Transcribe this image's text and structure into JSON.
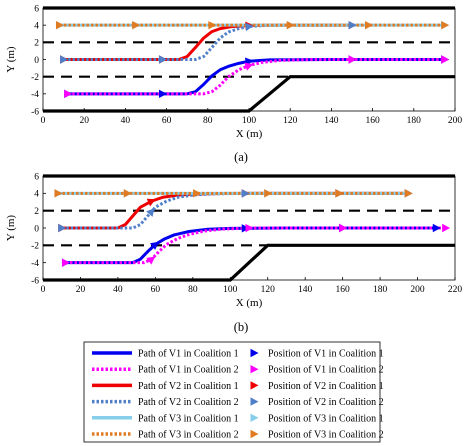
{
  "legend": {
    "items": [
      {
        "label": "Path of V1 in Coalition 1",
        "kind": "line",
        "color": "#0000ee",
        "dash": "solid"
      },
      {
        "label": "Path of V1 in Coalition 2",
        "kind": "line",
        "color": "#ff00ff",
        "dash": "dotted"
      },
      {
        "label": "Path of V2 in Coalition 1",
        "kind": "line",
        "color": "#ee0000",
        "dash": "solid"
      },
      {
        "label": "Path of V2 in Coalition 2",
        "kind": "line",
        "color": "#4f7fc9",
        "dash": "dotted"
      },
      {
        "label": "Path of V3 in Coalition 1",
        "kind": "line",
        "color": "#87ceeb",
        "dash": "solid"
      },
      {
        "label": "Path of V3 in Coalition 2",
        "kind": "line",
        "color": "#e07b22",
        "dash": "dotted"
      },
      {
        "label": "Position of V1 in Coalition 1",
        "kind": "marker",
        "color": "#0000ee"
      },
      {
        "label": "Position of V1 in Coalition 2",
        "kind": "marker",
        "color": "#ff00ff"
      },
      {
        "label": "Position of V2 in Coalition 1",
        "kind": "marker",
        "color": "#ee0000"
      },
      {
        "label": "Position of V2 in Coalition 2",
        "kind": "marker",
        "color": "#4f7fc9"
      },
      {
        "label": "Position of V3 in Coalition 1",
        "kind": "marker",
        "color": "#87ceeb"
      },
      {
        "label": "Position of V3 in Coalition 2",
        "kind": "marker",
        "color": "#e07b22"
      }
    ]
  },
  "chart_data": [
    {
      "type": "line",
      "caption": "(a)",
      "xlabel": "X (m)",
      "ylabel": "Y (m)",
      "xlim": [
        0,
        200
      ],
      "ylim": [
        -6,
        6
      ],
      "xticks": [
        0,
        20,
        40,
        60,
        80,
        100,
        120,
        140,
        160,
        180,
        200
      ],
      "yticks": [
        -6,
        -4,
        -2,
        0,
        2,
        4,
        6
      ],
      "road": {
        "solid_lines": [
          [
            [
              0,
              6
            ],
            [
              200,
              6
            ]
          ],
          [
            [
              0,
              -6
            ],
            [
              100,
              -6
            ],
            [
              120,
              -2
            ],
            [
              200,
              -2
            ]
          ]
        ],
        "dashed_lines": [
          [
            [
              0,
              2
            ],
            [
              200,
              2
            ]
          ],
          [
            [
              0,
              -2
            ],
            [
              120,
              -2
            ]
          ]
        ]
      },
      "series": [
        {
          "name": "Path of V1 in Coalition 1",
          "color": "#0000ee",
          "dash": "solid",
          "x": [
            12,
            70,
            74,
            78,
            82,
            86,
            90,
            95,
            100,
            110,
            140,
            195
          ],
          "y": [
            -4,
            -4,
            -3.75,
            -2.9,
            -1.9,
            -1.2,
            -0.8,
            -0.45,
            -0.2,
            -0.05,
            0,
            0
          ],
          "marker_x": [
            12,
            58,
            100,
            150,
            195
          ]
        },
        {
          "name": "Path of V1 in Coalition 2",
          "color": "#ff00ff",
          "dash": "dotted",
          "x": [
            12,
            78,
            82,
            86,
            90,
            95,
            100,
            106,
            115,
            130,
            195
          ],
          "y": [
            -4,
            -4,
            -3.75,
            -3.0,
            -2.0,
            -1.2,
            -0.7,
            -0.35,
            -0.1,
            0,
            0
          ],
          "marker_x": [
            12,
            100,
            150,
            195
          ]
        },
        {
          "name": "Path of V2 in Coalition 1",
          "color": "#ee0000",
          "dash": "solid",
          "x": [
            10,
            66,
            70,
            74,
            78,
            82,
            86,
            92,
            100,
            110,
            125,
            150
          ],
          "y": [
            0,
            0,
            0.35,
            1.4,
            2.5,
            3.25,
            3.6,
            3.85,
            3.95,
            4,
            4,
            4
          ],
          "marker_x": [
            10,
            58,
            100,
            150
          ]
        },
        {
          "name": "Path of V2 in Coalition 2",
          "color": "#4f7fc9",
          "dash": "dotted",
          "x": [
            10,
            74,
            78,
            82,
            86,
            90,
            95,
            100,
            108,
            120,
            150
          ],
          "y": [
            0,
            0,
            0.35,
            1.4,
            2.5,
            3.2,
            3.6,
            3.85,
            3.97,
            4,
            4
          ],
          "marker_x": [
            10,
            58,
            100,
            150
          ]
        },
        {
          "name": "Path of V3 in Coalition 1",
          "color": "#87ceeb",
          "dash": "solid",
          "x": [
            8,
            195
          ],
          "y": [
            4,
            4
          ],
          "marker_x": [
            8,
            45,
            120,
            195
          ]
        },
        {
          "name": "Path of V3 in Coalition 2",
          "color": "#e07b22",
          "dash": "dotted",
          "x": [
            8,
            195
          ],
          "y": [
            4,
            4
          ],
          "marker_x": [
            8,
            45,
            82,
            120,
            158,
            195
          ]
        }
      ]
    },
    {
      "type": "line",
      "caption": "(b)",
      "xlabel": "X (m)",
      "ylabel": "Y (m)",
      "xlim": [
        0,
        220
      ],
      "ylim": [
        -6,
        6
      ],
      "xticks": [
        0,
        20,
        40,
        60,
        80,
        100,
        120,
        140,
        160,
        180,
        200,
        220
      ],
      "yticks": [
        -6,
        -4,
        -2,
        0,
        2,
        4,
        6
      ],
      "road": {
        "solid_lines": [
          [
            [
              0,
              6
            ],
            [
              220,
              6
            ]
          ],
          [
            [
              0,
              -6
            ],
            [
              100,
              -6
            ],
            [
              120,
              -2
            ],
            [
              220,
              -2
            ]
          ]
        ],
        "dashed_lines": [
          [
            [
              0,
              2
            ],
            [
              220,
              2
            ]
          ],
          [
            [
              0,
              -2
            ],
            [
              120,
              -2
            ]
          ]
        ]
      },
      "series": [
        {
          "name": "Path of V1 in Coalition 1",
          "color": "#0000ee",
          "dash": "solid",
          "x": [
            12,
            48,
            52,
            56,
            60,
            65,
            70,
            78,
            88,
            100,
            130,
            210
          ],
          "y": [
            -4,
            -4,
            -3.6,
            -2.7,
            -1.9,
            -1.25,
            -0.8,
            -0.4,
            -0.15,
            -0.05,
            0,
            0
          ],
          "marker_x": [
            12,
            60,
            108,
            160,
            210
          ]
        },
        {
          "name": "Path of V1 in Coalition 2",
          "color": "#ff00ff",
          "dash": "dotted",
          "x": [
            12,
            54,
            58,
            62,
            66,
            72,
            78,
            86,
            96,
            110,
            140,
            215
          ],
          "y": [
            -4,
            -4,
            -3.6,
            -2.7,
            -1.9,
            -1.2,
            -0.75,
            -0.35,
            -0.12,
            0,
            0,
            0
          ],
          "marker_x": [
            12,
            58,
            110,
            160,
            215
          ]
        },
        {
          "name": "Path of V2 in Coalition 1",
          "color": "#ee0000",
          "dash": "solid",
          "x": [
            10,
            40,
            44,
            48,
            52,
            58,
            64,
            72,
            82,
            95,
            110,
            195
          ],
          "y": [
            0,
            0,
            0.4,
            1.4,
            2.4,
            3.1,
            3.55,
            3.8,
            3.93,
            3.98,
            4,
            4
          ],
          "marker_x": [
            10,
            58,
            108,
            158,
            195
          ]
        },
        {
          "name": "Path of V2 in Coalition 2",
          "color": "#4f7fc9",
          "dash": "dotted",
          "x": [
            10,
            48,
            52,
            56,
            60,
            66,
            72,
            80,
            90,
            102,
            120,
            195
          ],
          "y": [
            0,
            0,
            0.4,
            1.4,
            2.4,
            3.1,
            3.55,
            3.8,
            3.93,
            3.98,
            4,
            4
          ],
          "marker_x": [
            10,
            58,
            108,
            158,
            195
          ]
        },
        {
          "name": "Path of V3 in Coalition 1",
          "color": "#87ceeb",
          "dash": "solid",
          "x": [
            8,
            195
          ],
          "y": [
            4,
            4
          ],
          "marker_x": [
            8,
            45,
            120,
            195
          ]
        },
        {
          "name": "Path of V3 in Coalition 2",
          "color": "#e07b22",
          "dash": "dotted",
          "x": [
            8,
            195
          ],
          "y": [
            4,
            4
          ],
          "marker_x": [
            8,
            45,
            82,
            120,
            158,
            195
          ]
        }
      ]
    }
  ]
}
